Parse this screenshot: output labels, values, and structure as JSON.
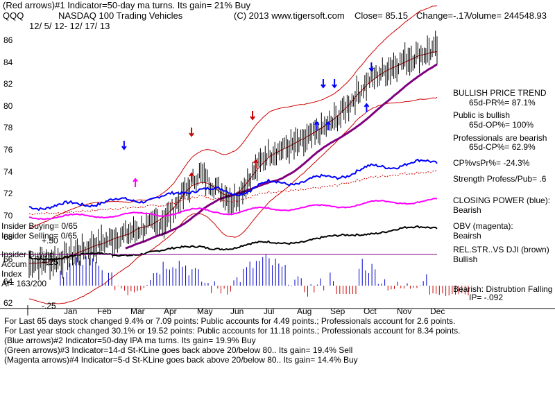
{
  "header": {
    "line1": "(Red arrows)#1 Indicator=50-day ma turns. Its gain= 21% Buy",
    "ticker": "QQQ",
    "name": "NASDAQ 100 Trading Vehicles",
    "copyright": "(C) 2013 www.tigersoft.com",
    "close": "Close= 85.15",
    "change": "Change=-.17",
    "volume": "Volume= 244548.93",
    "date_range": "12/ 5/ 12- 12/ 17/ 13"
  },
  "right_panel": {
    "trend_title": "BULLISH PRICE TREND",
    "pr": "65d-PR%= 87.1%",
    "public": "Public is bullish",
    "op": "65d-OP%= 100%",
    "pros": "Professionals are bearish",
    "cp": "65d-CP%= 62.9%",
    "cpvspr": "CP%vsPr%= -24.3%",
    "strength": "Strength Profess/Pub= .6",
    "cp_title": "CLOSING POWER (blue):",
    "cp_val": "Bearish",
    "obv_title": "OBV (magenta):",
    "obv_val": "Beairsh",
    "rel_title": "REL.STR..VS DJI (brown)",
    "rel_val": "Bullish",
    "bear": "Bearish: Distrubtion Falling",
    "ip": "IP= -.092"
  },
  "insider": {
    "buying": "Insider Buying= 0/65",
    "selling": "Insider Selling= 0/65",
    "ib_title": "Insider Buying",
    "accum": "Accum",
    "index": "Index",
    "ai": "AI= 163/200"
  },
  "footer": {
    "line1": "For Last 65 days stock changed  9.4% or  7.09 points:  Public accounts for  4.49 points.;  Professionals account for  2.6 points.",
    "line2": "For Last year stock changed  30.1% or  19.52 points:  Public accounts for  11.18 points.;  Professionals account for  8.34 points.",
    "line3": "(Blue arrows)#2 Indicator=50-day IPA ma turns. Its gain= 19.9% Buy",
    "line4": "(Green arrows)#3 Indicator=14-d St-KLine goes back above 20/below 80.. Its gain= 19.4% Sell",
    "line5": "(Magenta arrows)#4 Indicator=5-d St-KLine goes back above 20/below 80.. Its gain= 14.4% Buy"
  },
  "chart_data": {
    "type": "candlestick",
    "title": "NASDAQ 100 Trading Vehicles",
    "ticker": "QQQ",
    "price_axis": [
      86,
      84,
      82,
      80,
      78,
      76,
      74,
      72,
      70,
      68,
      66,
      64,
      62
    ],
    "ylim": [
      61,
      87
    ],
    "ai_axis": [
      "+.50",
      "+.25",
      "-.25"
    ],
    "months": [
      "Jan",
      "Feb",
      "Mar",
      "Apr",
      "May",
      "Jun",
      "Jul",
      "Aug",
      "Sep",
      "Oct",
      "Nov",
      "Dec"
    ],
    "price_closes_monthly": [
      66.0,
      67.3,
      68.4,
      69.5,
      73.8,
      71.2,
      75.6,
      76.5,
      78.6,
      82.3,
      84.1,
      85.15
    ],
    "ma50_monthly": [
      null,
      66.3,
      67.6,
      68.8,
      70.4,
      71.1,
      72.6,
      74.6,
      76.3,
      79.2,
      81.4,
      82.2
    ],
    "colors": {
      "price": "#000000",
      "band": "#cc0000",
      "ma50": "#800080",
      "closing_power": "#0000ff",
      "obv": "#ff00ff",
      "relstr": "#000000",
      "ai_pos": "#0000cc",
      "ai_neg": "#cc0000"
    }
  }
}
